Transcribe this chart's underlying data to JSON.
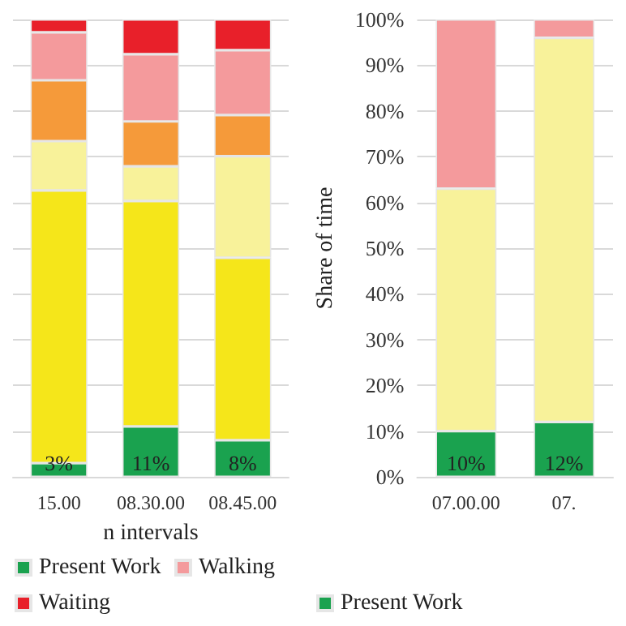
{
  "chart_data": [
    {
      "type": "bar",
      "stacked": true,
      "xlabel": "n intervals",
      "categories": [
        "15.00",
        "08.30.00",
        "08.45.00"
      ],
      "legend": "bottom",
      "grid": "y",
      "tick_labels": "x",
      "ylim": [
        0,
        100
      ],
      "yticks": [
        0,
        10,
        20,
        30,
        40,
        50,
        60,
        70,
        80,
        90,
        100
      ],
      "series": [
        {
          "name": "Present Work",
          "color": "#1aa24f",
          "values": [
            3,
            11,
            8
          ],
          "value_labels": [
            "3%",
            "11%",
            "8%"
          ]
        },
        {
          "color": "#f5e61a",
          "values": [
            59.6,
            49.3,
            39.9
          ]
        },
        {
          "color": "#f8f29a",
          "values": [
            10.8,
            7.6,
            22.2
          ]
        },
        {
          "color": "#f59a3a",
          "values": [
            13.3,
            9.8,
            9
          ]
        },
        {
          "name": "Walking",
          "color": "#f49a9c",
          "values": [
            10.5,
            14.7,
            14.2
          ]
        },
        {
          "name": "Waiting",
          "color": "#e8202a",
          "values": [
            2.8,
            7.6,
            6.7
          ]
        }
      ]
    },
    {
      "type": "bar",
      "stacked": true,
      "ylabel": "Share of time",
      "categories": [
        "07.00.00",
        "07."
      ],
      "legend": "bottom",
      "grid": "y",
      "ylim": [
        0,
        100
      ],
      "yticks": [
        {
          "value": 0,
          "label": "0%"
        },
        {
          "value": 10,
          "label": "10%"
        },
        {
          "value": 20,
          "label": "20%"
        },
        {
          "value": 30,
          "label": "30%"
        },
        {
          "value": 40,
          "label": "40%"
        },
        {
          "value": 50,
          "label": "50%"
        },
        {
          "value": 60,
          "label": "60%"
        },
        {
          "value": 70,
          "label": "70%"
        },
        {
          "value": 80,
          "label": "80%"
        },
        {
          "value": 90,
          "label": "90%"
        },
        {
          "value": 100,
          "label": "100%"
        }
      ],
      "series": [
        {
          "name": "Present Work",
          "color": "#1aa24f",
          "values": [
            10,
            12
          ],
          "value_labels": [
            "10%",
            "12%"
          ]
        },
        {
          "color": "#f8f29a",
          "values": [
            53,
            84
          ]
        },
        {
          "color": "#f49a9c",
          "values": [
            37,
            4
          ]
        }
      ]
    }
  ]
}
